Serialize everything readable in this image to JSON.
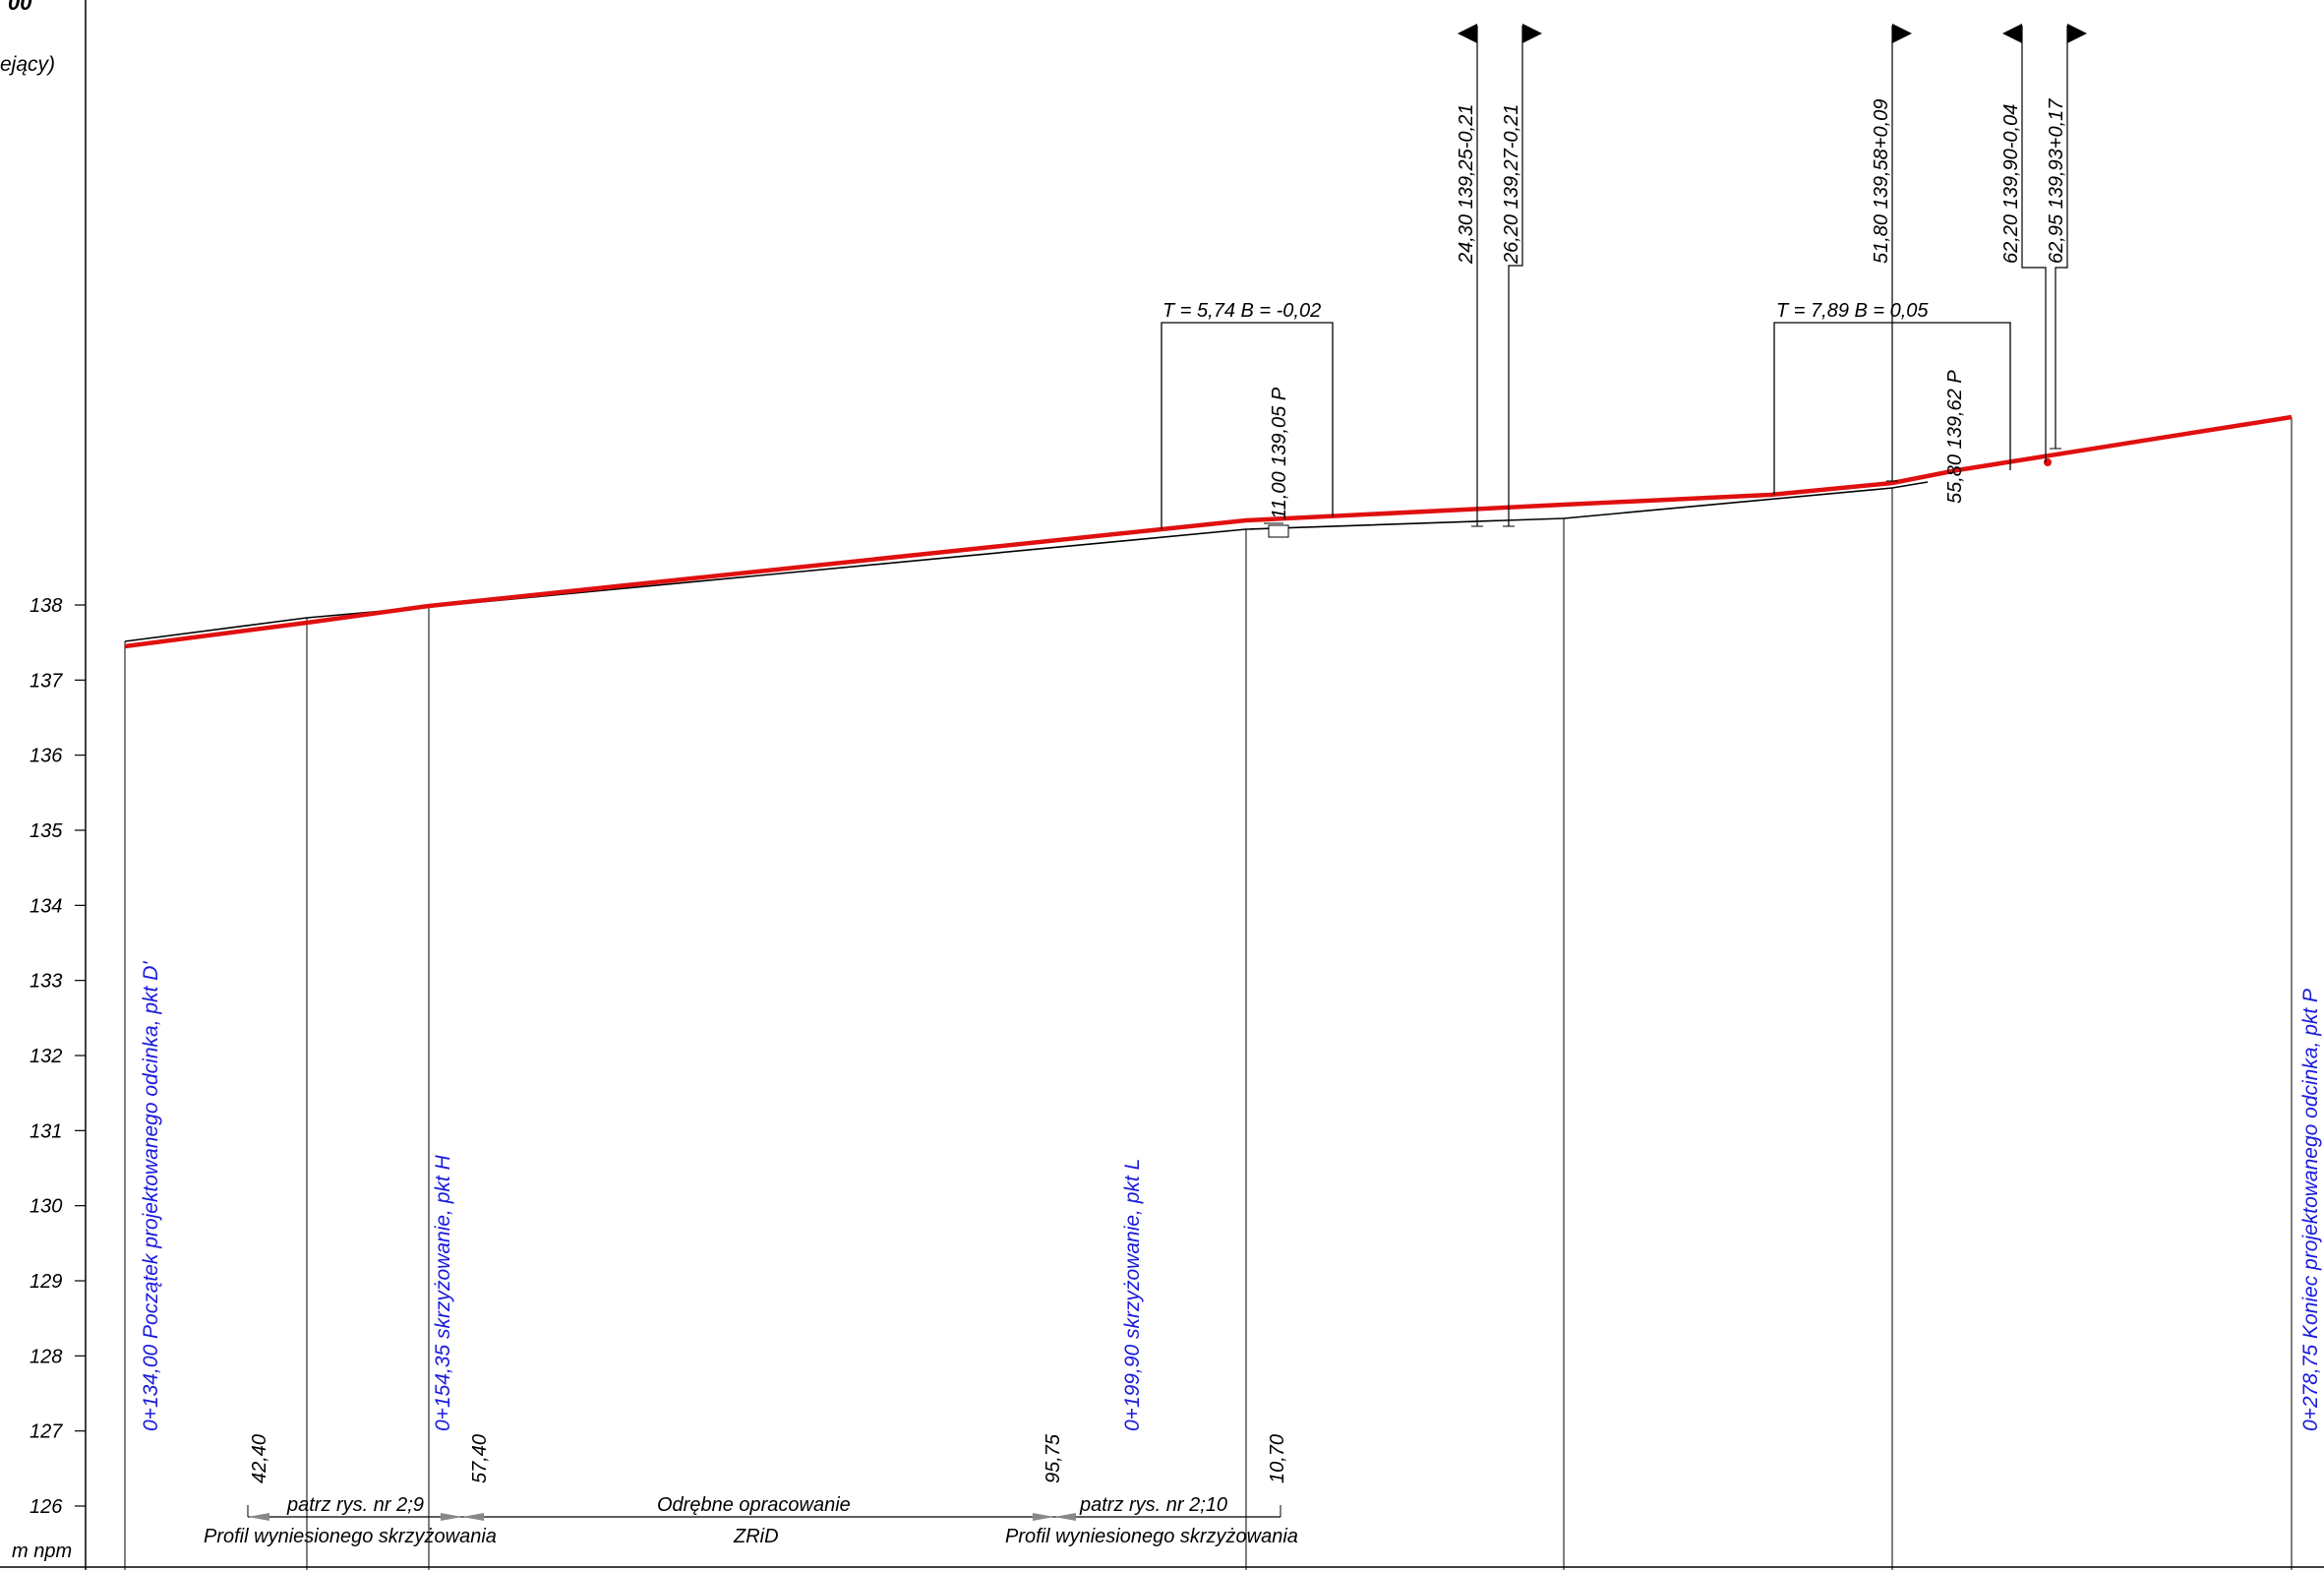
{
  "header": {
    "scale_fragment": "00",
    "subtitle_fragment": "ejący)"
  },
  "axis": {
    "unit_label": "m  npm",
    "ticks": [
      "126",
      "127",
      "128",
      "129",
      "130",
      "131",
      "132",
      "133",
      "134",
      "135",
      "136",
      "137",
      "138"
    ]
  },
  "stations": {
    "start": "0+134,00  Początek projektowanego odcinka, pkt  D'",
    "h": "0+154,35  skrzyżowanie, pkt  H",
    "l": "0+199,90  skrzyżowanie, pkt  L",
    "end": "0+278,75  Koniec projektowanego odcinka, pkt  P"
  },
  "curves": {
    "c1": "T = 5,74  B = -0,02",
    "c2": "T = 7,89  B = 0,05"
  },
  "point_labels": {
    "p1": "11,00 139,05 P",
    "p2": "55,80 139,62 P"
  },
  "flags": [
    "24,30  139,25-0,21",
    "26,20  139,27-0,21",
    "51,80  139,58+0,09",
    "62,20  139,90-0,04",
    "62,95  139,93+0,17"
  ],
  "bottom": {
    "d1": "42,40",
    "d2": "57,40",
    "d3": "95,75",
    "d4": "10,70",
    "ref1": "patrz rys. nr 2;9",
    "ref1_sub": "Profil wyniesionego skrzyżowania",
    "mid": "Odrębne opracowanie",
    "mid_sub": "ZRiD",
    "ref2": "patrz rys. nr 2;10",
    "ref2_sub": "Profil wyniesionego skrzyżowania"
  },
  "colors": {
    "design_line": "#e01010",
    "station_text": "#1a1adc",
    "ink": "#000000"
  }
}
